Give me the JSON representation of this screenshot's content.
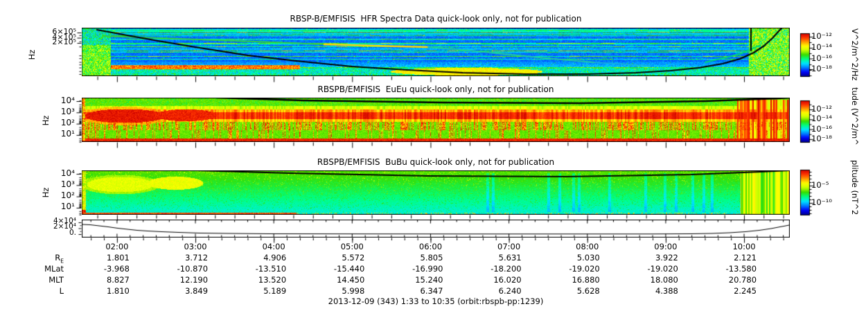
{
  "chart_data": [
    {
      "type": "heatmap",
      "panel": "HFR",
      "title": "RBSP-B/EMFISIS  HFR Spectra Data quick-look only, not for publication",
      "ylabel": "Hz",
      "y_scale": "log",
      "y_ticks": [
        "6×10⁵",
        "4×10⁵",
        "2×10⁵"
      ],
      "x_range": [
        "01:33",
        "10:35"
      ],
      "x_ticks": [
        "02:00",
        "03:00",
        "04:00",
        "05:00",
        "06:00",
        "07:00",
        "08:00",
        "09:00",
        "10:00"
      ],
      "colorbar": {
        "units": "V^2/m^2/Hz",
        "tick_labels": [
          "10⁻¹²",
          "10⁻¹⁴",
          "10⁻¹⁶",
          "10⁻¹⁸"
        ]
      },
      "visual_summary": "blue background with cyan interference striations; black fce trace falling from upper left to the bottom then rising steeply at right with a vertical black segment near x=10:00; green/yellow upper-hybrid trace; red-orange emission along the bottom left and center; dense green columns at both ends"
    },
    {
      "type": "heatmap",
      "panel": "EuEu",
      "title": "RBSPB/EMFISIS  EuEu quick-look only, not for publication",
      "ylabel": "Hz",
      "y_scale": "log",
      "y_ticks": [
        "10⁴",
        "10³",
        "10²",
        "10¹"
      ],
      "colorbar": {
        "units": "tude (V^2/m^",
        "tick_labels": [
          "10⁻¹²",
          "10⁻¹⁴",
          "10⁻¹⁶",
          "10⁻¹⁸"
        ]
      },
      "visual_summary": "green background; intense red band near 100-1000 Hz across the whole interval with a strong red blob at the start; vertical red striping below the band; solid red strip along the bottom; thin black fce arc near the top; strong red/yellow columns at the right end"
    },
    {
      "type": "heatmap",
      "panel": "BuBu",
      "title": "RBSPB/EMFISIS  BuBu quick-look only, not for publication",
      "ylabel": "Hz",
      "y_scale": "log",
      "y_ticks": [
        "10⁴",
        "10³",
        "10²",
        "10¹"
      ],
      "colorbar": {
        "units": "plitude (nT^2",
        "tick_labels": [
          "10⁻⁵",
          "10⁻¹⁰"
        ]
      },
      "visual_summary": "green fading to cyan toward low frequencies; yellow emission blobs near 100-1000 Hz at the start; thin black fce arc near the top; red strip along bottom left edge; yellow-green columns at the right end"
    },
    {
      "type": "line",
      "panel": "fce-strip",
      "y_ticks": [
        "4×10⁴",
        "2×10⁴",
        "0."
      ],
      "ylim": [
        0,
        40000
      ],
      "x": [
        "01:33",
        "02:00",
        "02:30",
        "03:00",
        "04:00",
        "05:00",
        "06:00",
        "07:00",
        "08:00",
        "09:00",
        "09:45",
        "10:10",
        "10:35"
      ],
      "values": [
        31000,
        16000,
        5000,
        2500,
        2000,
        1800,
        1800,
        1800,
        1900,
        2200,
        5000,
        14000,
        28000
      ],
      "note": "values estimated from trace; frequency falls near perigee-to-apogee transit and rises again at the end of the orbit"
    },
    {
      "type": "table",
      "panel": "ephemeris",
      "x_ticks": [
        "02:00",
        "03:00",
        "04:00",
        "05:00",
        "06:00",
        "07:00",
        "08:00",
        "09:00",
        "10:00"
      ],
      "rows": [
        {
          "label": "R",
          "label_sub": "E",
          "values": [
            "1.801",
            "3.712",
            "4.906",
            "5.572",
            "5.805",
            "5.631",
            "5.030",
            "3.922",
            "2.121"
          ]
        },
        {
          "label": "MLat",
          "label_sub": "",
          "values": [
            "-3.968",
            "-10.870",
            "-13.510",
            "-15.440",
            "-16.990",
            "-18.200",
            "-19.020",
            "-19.020",
            "-13.580"
          ]
        },
        {
          "label": "MLT",
          "label_sub": "",
          "values": [
            "8.827",
            "12.190",
            "13.520",
            "14.450",
            "15.240",
            "16.020",
            "16.880",
            "18.080",
            "20.780"
          ]
        },
        {
          "label": "L",
          "label_sub": "",
          "values": [
            "1.810",
            "3.849",
            "5.189",
            "5.998",
            "6.347",
            "6.240",
            "5.628",
            "4.388",
            "2.245"
          ]
        }
      ]
    }
  ],
  "footer": {
    "caption": "2013-12-09 (343) 1:33 to 10:35 (orbit:rbspb-pp:1239)"
  },
  "colors": {
    "background": "#ffffff",
    "trace": "#000000",
    "colormap": [
      "#000090",
      "#0000ff",
      "#0080ff",
      "#00e8ff",
      "#00ff80",
      "#38dd00",
      "#c8ff00",
      "#ffff00",
      "#ff9800",
      "#ff3000",
      "#cc0000"
    ]
  }
}
